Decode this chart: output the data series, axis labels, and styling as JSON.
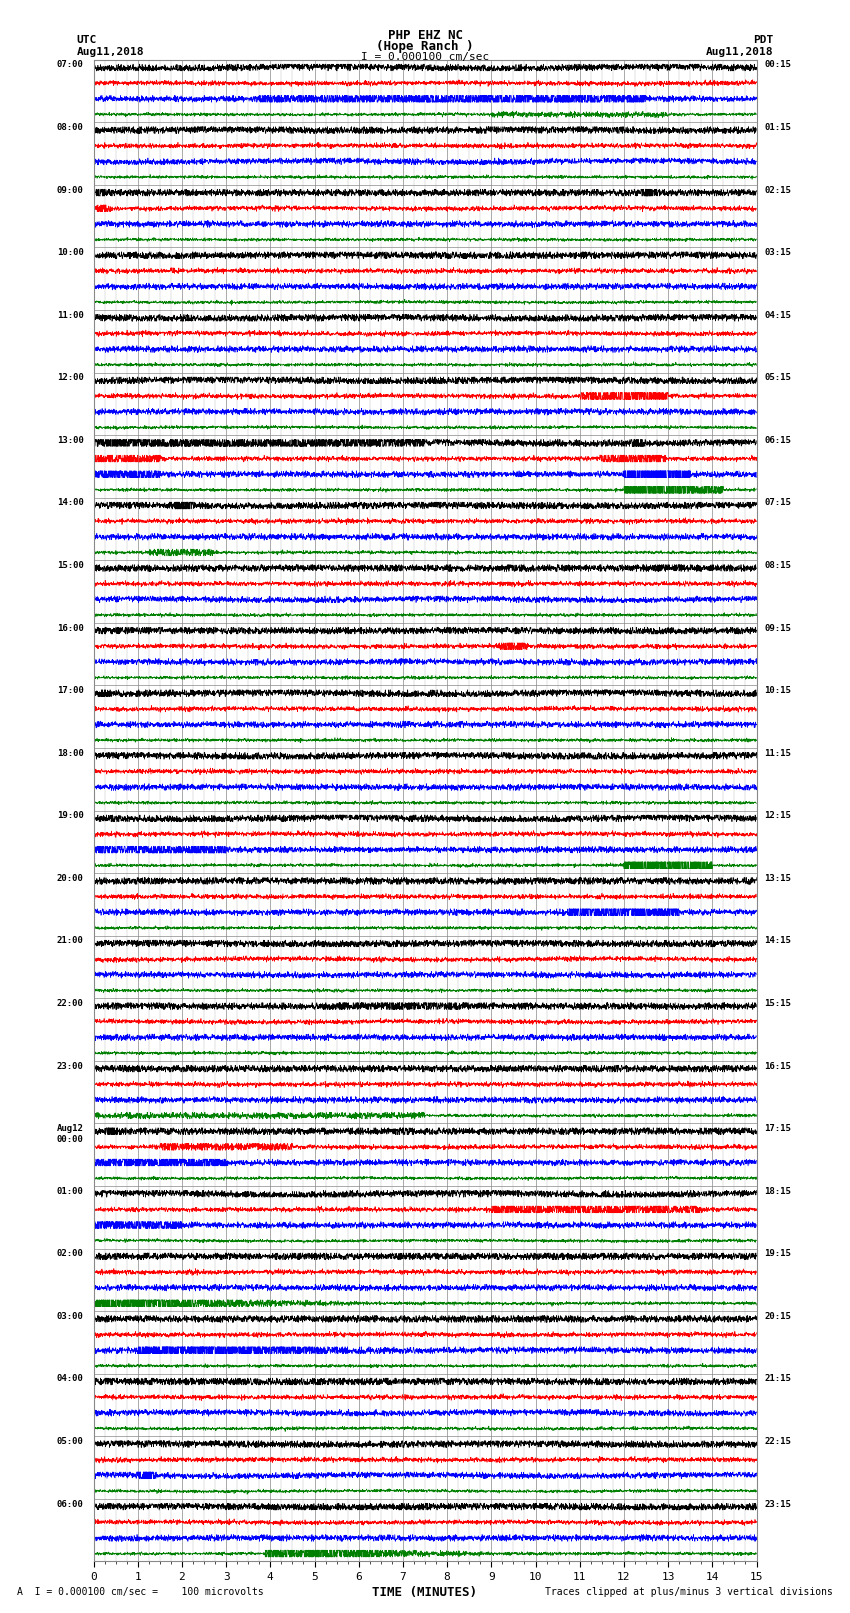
{
  "title_line1": "PHP EHZ NC",
  "title_line2": "(Hope Ranch )",
  "scale_label": "I = 0.000100 cm/sec",
  "utc_label": "UTC",
  "utc_date": "Aug11,2018",
  "pdt_label": "PDT",
  "pdt_date": "Aug11,2018",
  "bottom_left": "A  I = 0.000100 cm/sec =    100 microvolts",
  "bottom_right": "Traces clipped at plus/minus 3 vertical divisions",
  "xlabel": "TIME (MINUTES)",
  "left_time_labels": [
    "07:00",
    "08:00",
    "09:00",
    "10:00",
    "11:00",
    "12:00",
    "13:00",
    "14:00",
    "15:00",
    "16:00",
    "17:00",
    "18:00",
    "19:00",
    "20:00",
    "21:00",
    "22:00",
    "23:00",
    "Aug12\n00:00",
    "01:00",
    "02:00",
    "03:00",
    "04:00",
    "05:00",
    "06:00"
  ],
  "right_time_labels": [
    "00:15",
    "01:15",
    "02:15",
    "03:15",
    "04:15",
    "05:15",
    "06:15",
    "07:15",
    "08:15",
    "09:15",
    "10:15",
    "11:15",
    "12:15",
    "13:15",
    "14:15",
    "15:15",
    "16:15",
    "17:15",
    "18:15",
    "19:15",
    "20:15",
    "21:15",
    "22:15",
    "23:15"
  ],
  "num_rows": 24,
  "traces_per_row": 4,
  "colors": [
    "black",
    "red",
    "blue",
    "green"
  ],
  "bg_color": "white",
  "x_min": 0,
  "x_max": 15,
  "noise_seed": 42,
  "base_amplitudes": [
    0.25,
    0.15,
    0.2,
    0.1
  ],
  "linewidth": 0.5
}
